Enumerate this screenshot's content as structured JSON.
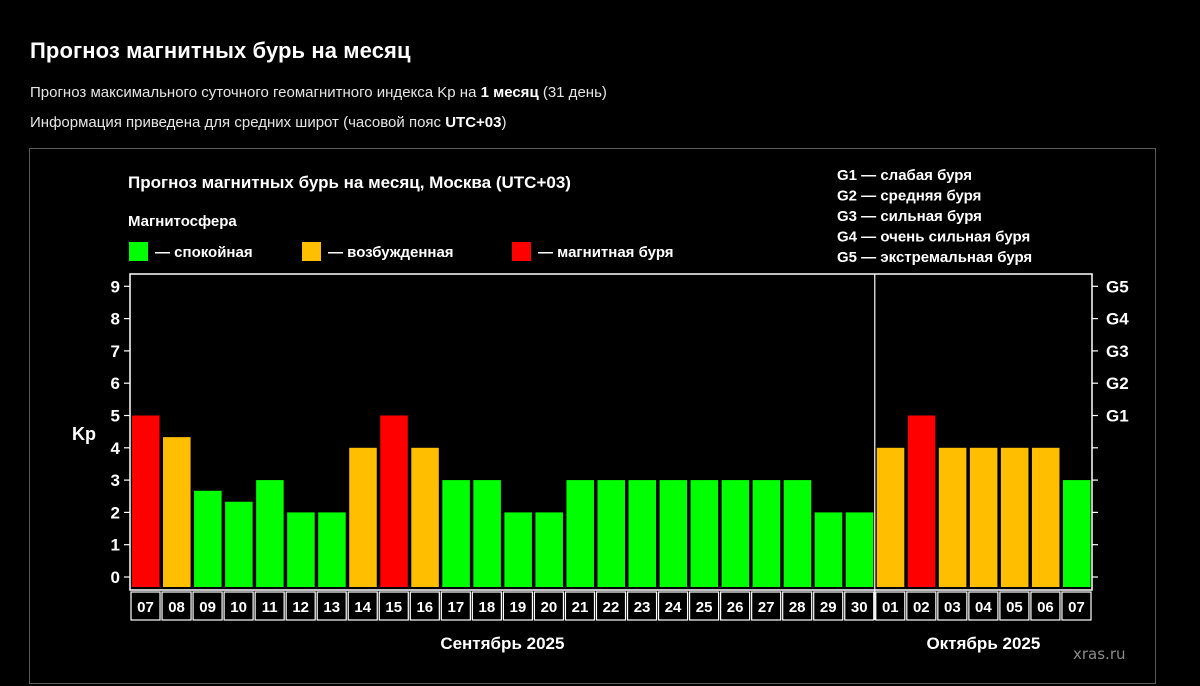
{
  "page": {
    "title": "Прогноз магнитных бурь на месяц",
    "subtitle1_prefix": "Прогноз максимального суточного геомагнитного индекса Kp на ",
    "subtitle1_bold": "1 месяц",
    "subtitle1_suffix": " (31 день)",
    "subtitle2_prefix": "Информация приведена для средних широт (часовой пояс ",
    "subtitle2_bold": "UTC+03",
    "subtitle2_suffix": ")",
    "watermark": "xras.ru"
  },
  "colors": {
    "background": "#000000",
    "calm": "#00ff00",
    "excited": "#ffbf00",
    "storm": "#ff0000"
  },
  "chart_data": {
    "type": "bar",
    "title": "Прогноз магнитных бурь на месяц, Москва (UTC+03)",
    "legend_title": "Магнитосфера",
    "legend": [
      {
        "key": "calm",
        "label": "— спокойная"
      },
      {
        "key": "excited",
        "label": "— возбужденная"
      },
      {
        "key": "storm",
        "label": "— магнитная буря"
      }
    ],
    "g_scale": [
      "G1 — слабая буря",
      "G2 — средняя буря",
      "G3 — сильная буря",
      "G4 — очень сильная буря",
      "G5 — экстремальная буря"
    ],
    "ylabel": "Kp",
    "ylim": [
      0,
      9
    ],
    "yticks": [
      "0",
      "1",
      "2",
      "3",
      "4",
      "5",
      "6",
      "7",
      "8",
      "9"
    ],
    "right_ticks": [
      {
        "value": 5,
        "label": "G1"
      },
      {
        "value": 6,
        "label": "G2"
      },
      {
        "value": 7,
        "label": "G3"
      },
      {
        "value": 8,
        "label": "G4"
      },
      {
        "value": 9,
        "label": "G5"
      }
    ],
    "categories": [
      "07",
      "08",
      "09",
      "10",
      "11",
      "12",
      "13",
      "14",
      "15",
      "16",
      "17",
      "18",
      "19",
      "20",
      "21",
      "22",
      "23",
      "24",
      "25",
      "26",
      "27",
      "28",
      "29",
      "30",
      "01",
      "02",
      "03",
      "04",
      "05",
      "06",
      "07"
    ],
    "values": [
      5,
      4.33,
      2.67,
      2.33,
      3,
      2,
      2,
      4,
      5,
      4,
      3,
      3,
      2,
      2,
      3,
      3,
      3,
      3,
      3,
      3,
      3,
      3,
      2,
      2,
      4,
      5,
      4,
      4,
      4,
      4,
      3
    ],
    "levels": [
      "storm",
      "excited",
      "calm",
      "calm",
      "calm",
      "calm",
      "calm",
      "excited",
      "storm",
      "excited",
      "calm",
      "calm",
      "calm",
      "calm",
      "calm",
      "calm",
      "calm",
      "calm",
      "calm",
      "calm",
      "calm",
      "calm",
      "calm",
      "calm",
      "excited",
      "storm",
      "excited",
      "excited",
      "excited",
      "excited",
      "calm"
    ],
    "months": [
      {
        "label": "Сентябрь 2025",
        "start": 0,
        "end": 23
      },
      {
        "label": "Октябрь 2025",
        "start": 24,
        "end": 30
      }
    ],
    "month_divider_after_index": 23,
    "grid": false
  }
}
